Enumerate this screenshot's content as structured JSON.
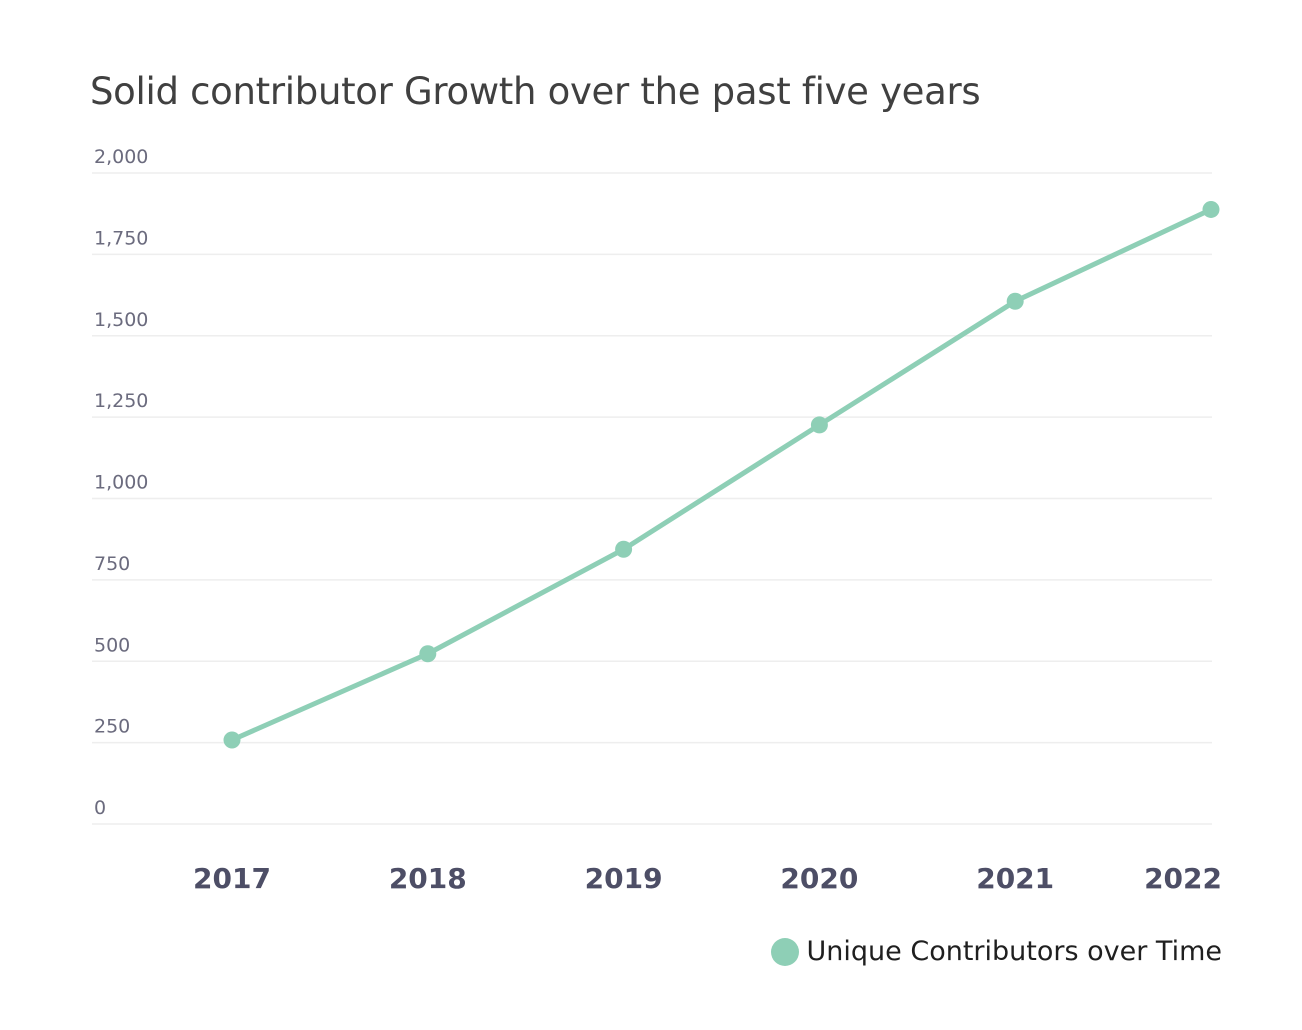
{
  "colors": {
    "series": "#8ecfb6",
    "grid": "#eeeeee",
    "title": "#404040"
  },
  "chart_data": {
    "type": "line",
    "title": "Solid contributor Growth over the past five years",
    "xlabel": "",
    "ylabel": "",
    "categories": [
      "2017",
      "2018",
      "2019",
      "2020",
      "2021",
      "2022"
    ],
    "series": [
      {
        "name": "Unique Contributors over Time",
        "values": [
          258,
          523,
          844,
          1226,
          1606,
          1888
        ]
      }
    ],
    "ylim": [
      0,
      2000
    ],
    "yticks": [
      0,
      250,
      500,
      750,
      1000,
      1250,
      1500,
      1750,
      2000
    ],
    "ytick_labels": [
      "0",
      "250",
      "500",
      "750",
      "1,000",
      "1,250",
      "1,500",
      "1,750",
      "2,000"
    ],
    "grid": true,
    "legend_position": "bottom-right",
    "markers": true
  }
}
